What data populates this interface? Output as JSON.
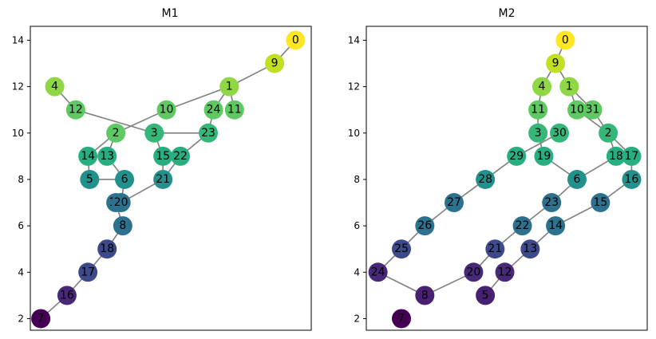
{
  "chart_data": [
    {
      "type": "network",
      "title": "M1",
      "ylim": [
        1.5,
        14.6
      ],
      "yticks": [
        2,
        4,
        6,
        8,
        10,
        12,
        14
      ],
      "xlim": [
        -1.2,
        14.9
      ],
      "nodes": [
        {
          "id": "0",
          "x": 14.0,
          "y": 14.0,
          "color": "#fde725"
        },
        {
          "id": "1",
          "x": 10.2,
          "y": 12.0,
          "color": "#8fd744"
        },
        {
          "id": "2",
          "x": 3.7,
          "y": 10.0,
          "color": "#5ec962"
        },
        {
          "id": "3",
          "x": 5.9,
          "y": 10.0,
          "color": "#35b779"
        },
        {
          "id": "4",
          "x": 0.2,
          "y": 12.0,
          "color": "#8fd744"
        },
        {
          "id": "5",
          "x": 2.2,
          "y": 8.0,
          "color": "#21918c"
        },
        {
          "id": "6",
          "x": 4.2,
          "y": 8.0,
          "color": "#21918c"
        },
        {
          "id": "7",
          "x": -0.6,
          "y": 2.0,
          "color": "#440154"
        },
        {
          "id": "8",
          "x": 4.1,
          "y": 6.0,
          "color": "#2c728e"
        },
        {
          "id": "9",
          "x": 12.8,
          "y": 13.0,
          "color": "#c2df23"
        },
        {
          "id": "10",
          "x": 6.6,
          "y": 11.0,
          "color": "#5ec962"
        },
        {
          "id": "11",
          "x": 10.5,
          "y": 11.0,
          "color": "#5ec962"
        },
        {
          "id": "12",
          "x": 1.4,
          "y": 11.0,
          "color": "#5ec962"
        },
        {
          "id": "13",
          "x": 3.2,
          "y": 9.0,
          "color": "#28ae80"
        },
        {
          "id": "14",
          "x": 2.1,
          "y": 9.0,
          "color": "#28ae80"
        },
        {
          "id": "15",
          "x": 6.4,
          "y": 9.0,
          "color": "#28ae80"
        },
        {
          "id": "16",
          "x": 0.9,
          "y": 3.0,
          "color": "#482878"
        },
        {
          "id": "17",
          "x": 2.1,
          "y": 4.0,
          "color": "#3e4989"
        },
        {
          "id": "18",
          "x": 3.2,
          "y": 5.0,
          "color": "#3e4989"
        },
        {
          "id": "19",
          "x": 3.7,
          "y": 7.0,
          "color": "#2c728e"
        },
        {
          "id": "20",
          "x": 4.0,
          "y": 7.0,
          "color": "#2c728e"
        },
        {
          "id": "21",
          "x": 6.4,
          "y": 8.0,
          "color": "#21918c"
        },
        {
          "id": "22",
          "x": 7.4,
          "y": 9.0,
          "color": "#28ae80"
        },
        {
          "id": "23",
          "x": 9.0,
          "y": 10.0,
          "color": "#35b779"
        },
        {
          "id": "24",
          "x": 9.3,
          "y": 11.0,
          "color": "#5ec962"
        }
      ],
      "edges": [
        [
          "0",
          "9"
        ],
        [
          "9",
          "1"
        ],
        [
          "1",
          "10"
        ],
        [
          "1",
          "24"
        ],
        [
          "1",
          "11"
        ],
        [
          "12",
          "3"
        ],
        [
          "10",
          "2"
        ],
        [
          "24",
          "23"
        ],
        [
          "2",
          "14"
        ],
        [
          "2",
          "13"
        ],
        [
          "3",
          "23"
        ],
        [
          "3",
          "15"
        ],
        [
          "23",
          "22"
        ],
        [
          "13",
          "6"
        ],
        [
          "14",
          "5"
        ],
        [
          "5",
          "6"
        ],
        [
          "6",
          "20"
        ],
        [
          "15",
          "21"
        ],
        [
          "22",
          "21"
        ],
        [
          "21",
          "20"
        ],
        [
          "19",
          "8"
        ],
        [
          "8",
          "18"
        ],
        [
          "18",
          "17"
        ],
        [
          "17",
          "16"
        ],
        [
          "16",
          "7"
        ],
        [
          "4",
          "12"
        ]
      ]
    },
    {
      "type": "network",
      "title": "M2",
      "ylim": [
        1.5,
        14.6
      ],
      "yticks": [
        2,
        4,
        6,
        8,
        10,
        12,
        14
      ],
      "xlim": [
        -1.2,
        13.2
      ],
      "nodes": [
        {
          "id": "0",
          "x": 9.0,
          "y": 14.0,
          "color": "#fde725"
        },
        {
          "id": "9",
          "x": 8.5,
          "y": 13.0,
          "color": "#c2df23"
        },
        {
          "id": "4",
          "x": 7.8,
          "y": 12.0,
          "color": "#8fd744"
        },
        {
          "id": "1",
          "x": 9.2,
          "y": 12.0,
          "color": "#8fd744"
        },
        {
          "id": "11",
          "x": 7.6,
          "y": 11.0,
          "color": "#5ec962"
        },
        {
          "id": "10",
          "x": 9.6,
          "y": 11.0,
          "color": "#5ec962"
        },
        {
          "id": "31",
          "x": 10.4,
          "y": 11.0,
          "color": "#5ec962"
        },
        {
          "id": "3",
          "x": 7.6,
          "y": 10.0,
          "color": "#35b779"
        },
        {
          "id": "30",
          "x": 8.7,
          "y": 10.0,
          "color": "#35b779"
        },
        {
          "id": "2",
          "x": 11.2,
          "y": 10.0,
          "color": "#35b779"
        },
        {
          "id": "29",
          "x": 6.5,
          "y": 9.0,
          "color": "#28ae80"
        },
        {
          "id": "19",
          "x": 7.9,
          "y": 9.0,
          "color": "#28ae80"
        },
        {
          "id": "18",
          "x": 11.6,
          "y": 9.0,
          "color": "#28ae80"
        },
        {
          "id": "17",
          "x": 12.4,
          "y": 9.0,
          "color": "#28ae80"
        },
        {
          "id": "28",
          "x": 4.9,
          "y": 8.0,
          "color": "#21918c"
        },
        {
          "id": "6",
          "x": 9.6,
          "y": 8.0,
          "color": "#21918c"
        },
        {
          "id": "16",
          "x": 12.4,
          "y": 8.0,
          "color": "#21918c"
        },
        {
          "id": "27",
          "x": 3.3,
          "y": 7.0,
          "color": "#2c728e"
        },
        {
          "id": "23",
          "x": 8.3,
          "y": 7.0,
          "color": "#2c728e"
        },
        {
          "id": "15",
          "x": 10.8,
          "y": 7.0,
          "color": "#2c728e"
        },
        {
          "id": "26",
          "x": 1.8,
          "y": 6.0,
          "color": "#2c728e"
        },
        {
          "id": "22",
          "x": 6.8,
          "y": 6.0,
          "color": "#2c728e"
        },
        {
          "id": "14",
          "x": 8.5,
          "y": 6.0,
          "color": "#2c728e"
        },
        {
          "id": "25",
          "x": 0.6,
          "y": 5.0,
          "color": "#3e4989"
        },
        {
          "id": "21",
          "x": 5.4,
          "y": 5.0,
          "color": "#3e4989"
        },
        {
          "id": "13",
          "x": 7.2,
          "y": 5.0,
          "color": "#3e4989"
        },
        {
          "id": "24",
          "x": -0.6,
          "y": 4.0,
          "color": "#482878"
        },
        {
          "id": "20",
          "x": 4.3,
          "y": 4.0,
          "color": "#482878"
        },
        {
          "id": "12",
          "x": 5.9,
          "y": 4.0,
          "color": "#482878"
        },
        {
          "id": "8",
          "x": 1.8,
          "y": 3.0,
          "color": "#482173"
        },
        {
          "id": "5",
          "x": 4.9,
          "y": 3.0,
          "color": "#482173"
        },
        {
          "id": "7",
          "x": 0.6,
          "y": 2.0,
          "color": "#440154"
        }
      ],
      "edges": [
        [
          "0",
          "9"
        ],
        [
          "9",
          "4"
        ],
        [
          "9",
          "1"
        ],
        [
          "4",
          "11"
        ],
        [
          "1",
          "10"
        ],
        [
          "1",
          "31"
        ],
        [
          "11",
          "3"
        ],
        [
          "10",
          "2"
        ],
        [
          "31",
          "2"
        ],
        [
          "30",
          "29"
        ],
        [
          "3",
          "19"
        ],
        [
          "2",
          "18"
        ],
        [
          "2",
          "17"
        ],
        [
          "29",
          "28"
        ],
        [
          "28",
          "27"
        ],
        [
          "27",
          "26"
        ],
        [
          "26",
          "25"
        ],
        [
          "25",
          "24"
        ],
        [
          "24",
          "8"
        ],
        [
          "8",
          "20"
        ],
        [
          "19",
          "6"
        ],
        [
          "18",
          "6"
        ],
        [
          "6",
          "23"
        ],
        [
          "23",
          "22"
        ],
        [
          "22",
          "21"
        ],
        [
          "21",
          "20"
        ],
        [
          "17",
          "16"
        ],
        [
          "16",
          "15"
        ],
        [
          "15",
          "14"
        ],
        [
          "14",
          "13"
        ],
        [
          "13",
          "12"
        ],
        [
          "12",
          "5"
        ]
      ]
    }
  ]
}
